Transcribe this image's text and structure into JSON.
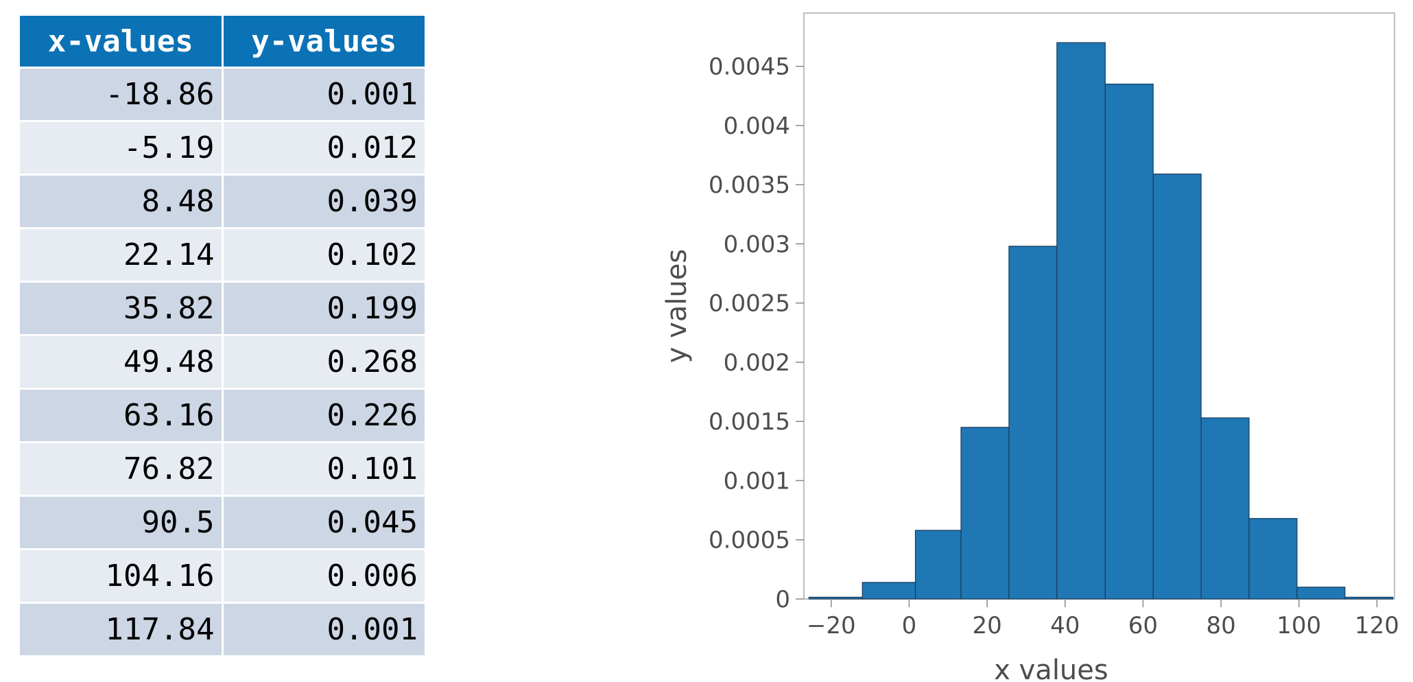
{
  "table": {
    "headers": [
      "x-values",
      "y-values"
    ],
    "rows": [
      [
        "-18.86",
        "0.001"
      ],
      [
        "-5.19",
        "0.012"
      ],
      [
        "8.48",
        "0.039"
      ],
      [
        "22.14",
        "0.102"
      ],
      [
        "35.82",
        "0.199"
      ],
      [
        "49.48",
        "0.268"
      ],
      [
        "63.16",
        "0.226"
      ],
      [
        "76.82",
        "0.101"
      ],
      [
        "90.5",
        "0.045"
      ],
      [
        "104.16",
        "0.006"
      ],
      [
        "117.84",
        "0.001"
      ]
    ]
  },
  "chart_data": {
    "type": "bar",
    "subtype": "histogram",
    "xlabel": "x values",
    "ylabel": "y values",
    "bins": [
      {
        "x0": -25.7,
        "x1": -12.0,
        "value": 1.5e-05
      },
      {
        "x0": -12.0,
        "x1": 1.6,
        "value": 0.00014
      },
      {
        "x0": 1.6,
        "x1": 13.3,
        "value": 0.00058
      },
      {
        "x0": 13.3,
        "x1": 25.6,
        "value": 0.00145
      },
      {
        "x0": 25.6,
        "x1": 37.9,
        "value": 0.00298
      },
      {
        "x0": 37.9,
        "x1": 50.3,
        "value": 0.0047
      },
      {
        "x0": 50.3,
        "x1": 62.6,
        "value": 0.00435
      },
      {
        "x0": 62.6,
        "x1": 74.9,
        "value": 0.00359
      },
      {
        "x0": 74.9,
        "x1": 87.2,
        "value": 0.00153
      },
      {
        "x0": 87.2,
        "x1": 99.5,
        "value": 0.00068
      },
      {
        "x0": 99.5,
        "x1": 111.8,
        "value": 0.0001
      },
      {
        "x0": 111.8,
        "x1": 124.1,
        "value": 1.5e-05
      }
    ],
    "xticks": [
      -20,
      0,
      20,
      40,
      60,
      80,
      100,
      120
    ],
    "xtick_labels": [
      "−20",
      "0",
      "20",
      "40",
      "60",
      "80",
      "100",
      "120"
    ],
    "yticks": [
      0,
      0.0005,
      0.001,
      0.0015,
      0.002,
      0.0025,
      0.003,
      0.0035,
      0.004,
      0.0045
    ],
    "ytick_labels": [
      "0",
      "0.0005",
      "0.001",
      "0.0015",
      "0.002",
      "0.0025",
      "0.003",
      "0.0035",
      "0.004",
      "0.0045"
    ],
    "xlim": [
      -27,
      124.5
    ],
    "ylim": [
      0,
      0.00495
    ],
    "grid": false,
    "bar_color": "#1f77b4",
    "bar_edge_color": "#1a3a5c",
    "frame_color": "#aaaaaa",
    "text_color": "#4d4d4d"
  }
}
